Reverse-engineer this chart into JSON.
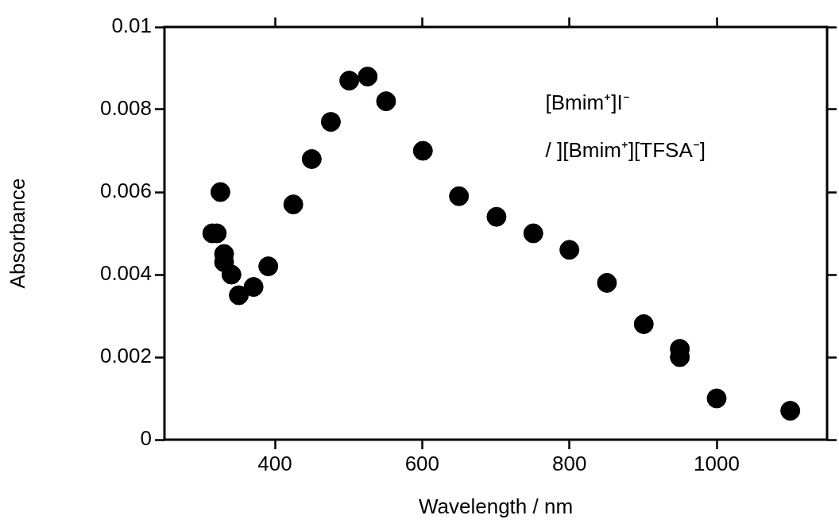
{
  "chart_data": {
    "type": "scatter",
    "xlabel": "Wavelength / nm",
    "ylabel": "Absorbance",
    "annotations": [
      "[Bmim⁺]I⁻",
      "/ ][Bmim⁺][TFSA⁻]"
    ],
    "x": [
      315,
      321,
      326,
      331,
      331,
      341,
      351,
      371,
      391,
      425,
      450,
      476,
      501,
      526,
      551,
      601,
      650,
      701,
      751,
      800,
      851,
      901,
      950,
      950,
      1000,
      1100
    ],
    "series": [
      {
        "color": "#000000",
        "values": [
          0.005,
          0.005,
          0.006,
          0.0045,
          0.0043,
          0.004,
          0.0035,
          0.0037,
          0.0042,
          0.0057,
          0.0068,
          0.0077,
          0.0087,
          0.0088,
          0.0082,
          0.007,
          0.0059,
          0.0054,
          0.005,
          0.0046,
          0.0038,
          0.0028,
          0.0022,
          0.002,
          0.001,
          0.0007
        ]
      }
    ],
    "xlim": [
      250,
      1150
    ],
    "xticks": [
      400,
      600,
      800,
      1000
    ],
    "ylim": [
      0,
      0.01
    ],
    "yticks": [
      0,
      0.002,
      0.004,
      0.006,
      0.008,
      0.01
    ],
    "marker": "circle",
    "legend": false
  }
}
